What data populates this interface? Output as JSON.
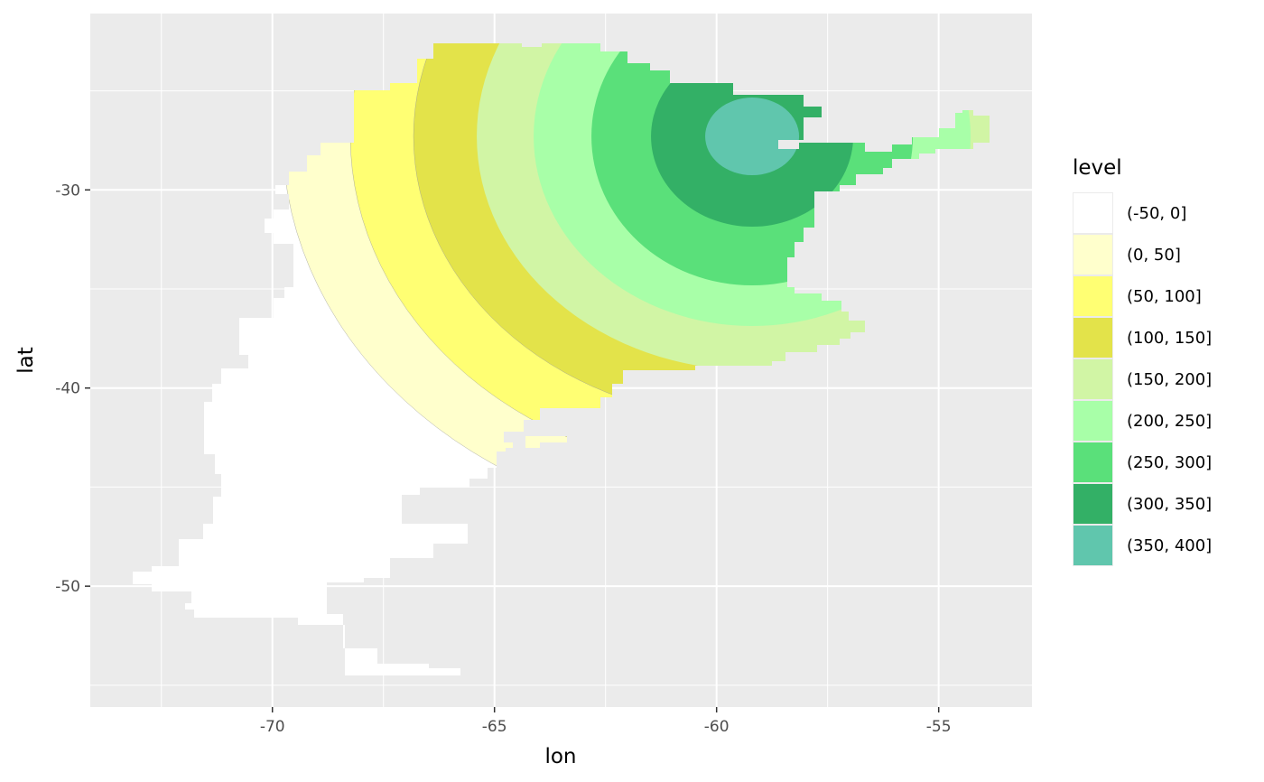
{
  "chart_data": {
    "type": "heatmap",
    "subtype": "filled-contour-map",
    "title": "",
    "xlabel": "lon",
    "ylabel": "lat",
    "xlim": [
      -74.1,
      -52.9
    ],
    "ylim": [
      -56.1,
      -21.1
    ],
    "x_ticks": [
      -70,
      -65,
      -60,
      -55
    ],
    "x_tick_labels": [
      "-70",
      "-65",
      "-60",
      "-55"
    ],
    "y_ticks": [
      -30,
      -40,
      -50
    ],
    "y_tick_labels": [
      "-30",
      "-40",
      "-50"
    ],
    "grid": true,
    "legend": {
      "title": "level",
      "position": "right"
    },
    "contour_center": {
      "lon": -59.2,
      "lat": -27.3
    },
    "levels": [
      {
        "label": "(-50, 0]",
        "color": "#FFFFFF"
      },
      {
        "label": "(0, 50]",
        "color": "#FFFFCC"
      },
      {
        "label": "(50, 100]",
        "color": "#FFFF73"
      },
      {
        "label": "(100, 150]",
        "color": "#E3E34A"
      },
      {
        "label": "(150, 200]",
        "color": "#D1F5A5"
      },
      {
        "label": "(200, 250]",
        "color": "#A8FFA8"
      },
      {
        "label": "(250, 300]",
        "color": "#5AE07A"
      },
      {
        "label": "(300, 350]",
        "color": "#33B066"
      },
      {
        "label": "(350, 400]",
        "color": "#60C6AD"
      }
    ]
  }
}
